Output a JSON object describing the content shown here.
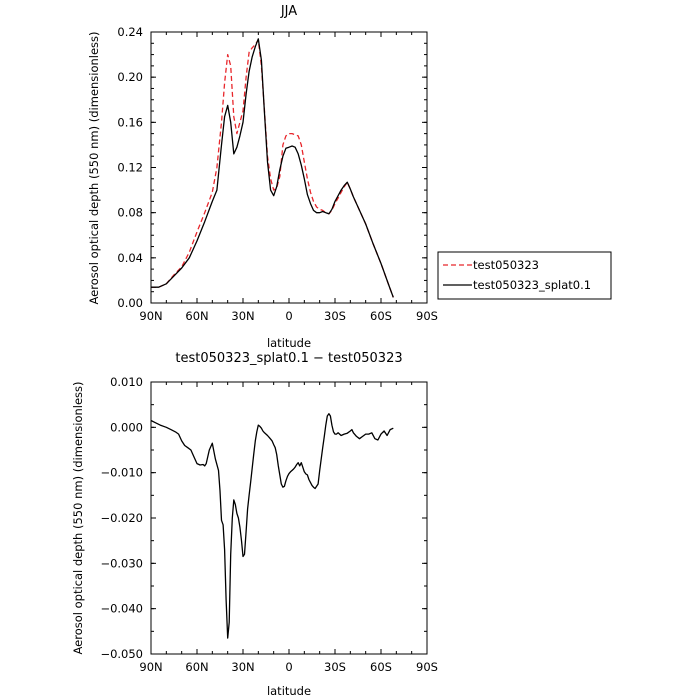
{
  "chart_data": [
    {
      "type": "line",
      "title": "JJA",
      "xlabel": "latitude",
      "ylabel": "Aerosol optical depth (550 nm) (dimensionless)",
      "xlim": [
        90,
        -90
      ],
      "ylim": [
        0,
        0.24
      ],
      "x_ticks": [
        "90N",
        "60N",
        "30N",
        "0",
        "30S",
        "60S",
        "90S"
      ],
      "y_ticks": [
        "0.00",
        "0.04",
        "0.08",
        "0.12",
        "0.16",
        "0.20",
        "0.24"
      ],
      "grid": false,
      "legend_position": "right, outside plot",
      "series": [
        {
          "name": "test050323",
          "color": "#e8262b",
          "style": "dashed",
          "x": [
            90,
            85,
            80,
            75,
            70,
            65,
            60,
            55,
            50,
            47,
            44,
            42,
            40,
            38,
            36,
            34,
            32,
            30,
            28,
            26,
            24,
            22,
            20,
            18,
            16,
            14,
            12,
            10,
            8,
            6,
            4,
            2,
            0,
            -2,
            -4,
            -6,
            -8,
            -10,
            -12,
            -14,
            -16,
            -18,
            -20,
            -22,
            -24,
            -26,
            -28,
            -30,
            -32,
            -34,
            -36,
            -38,
            -40,
            -42,
            -45,
            -50,
            -55,
            -60,
            -65,
            -68
          ],
          "y": [
            0.014,
            0.014,
            0.017,
            0.025,
            0.032,
            0.045,
            0.063,
            0.08,
            0.098,
            0.12,
            0.16,
            0.195,
            0.22,
            0.21,
            0.165,
            0.15,
            0.16,
            0.17,
            0.2,
            0.222,
            0.226,
            0.229,
            0.233,
            0.21,
            0.17,
            0.13,
            0.11,
            0.1,
            0.102,
            0.112,
            0.14,
            0.148,
            0.15,
            0.15,
            0.149,
            0.148,
            0.14,
            0.125,
            0.11,
            0.098,
            0.09,
            0.085,
            0.083,
            0.082,
            0.08,
            0.079,
            0.082,
            0.088,
            0.093,
            0.098,
            0.103,
            0.107,
            0.101,
            0.094,
            0.085,
            0.07,
            0.052,
            0.035,
            0.016,
            0.005
          ]
        },
        {
          "name": "test050323_splat0.1",
          "color": "#000000",
          "style": "solid",
          "x": [
            90,
            85,
            80,
            75,
            70,
            65,
            60,
            55,
            50,
            47,
            44,
            42,
            40,
            38,
            36,
            34,
            32,
            30,
            28,
            26,
            24,
            22,
            20,
            18,
            16,
            14,
            12,
            10,
            8,
            6,
            4,
            2,
            0,
            -2,
            -4,
            -6,
            -8,
            -10,
            -12,
            -14,
            -16,
            -18,
            -20,
            -22,
            -24,
            -26,
            -28,
            -30,
            -32,
            -34,
            -36,
            -38,
            -40,
            -42,
            -45,
            -50,
            -55,
            -60,
            -65,
            -68
          ],
          "y": [
            0.014,
            0.014,
            0.017,
            0.024,
            0.031,
            0.04,
            0.055,
            0.072,
            0.09,
            0.1,
            0.14,
            0.165,
            0.175,
            0.16,
            0.132,
            0.138,
            0.148,
            0.16,
            0.185,
            0.205,
            0.218,
            0.227,
            0.234,
            0.215,
            0.168,
            0.125,
            0.1,
            0.095,
            0.103,
            0.118,
            0.13,
            0.137,
            0.138,
            0.139,
            0.138,
            0.132,
            0.122,
            0.11,
            0.096,
            0.088,
            0.082,
            0.08,
            0.08,
            0.081,
            0.08,
            0.079,
            0.083,
            0.09,
            0.095,
            0.1,
            0.104,
            0.107,
            0.101,
            0.094,
            0.085,
            0.07,
            0.052,
            0.035,
            0.016,
            0.005
          ]
        }
      ]
    },
    {
      "type": "line",
      "title": "test050323_splat0.1 − test050323",
      "xlabel": "latitude",
      "ylabel": "Aerosol optical depth (550 nm) (dimensionless)",
      "xlim": [
        90,
        -90
      ],
      "ylim": [
        -0.05,
        0.01
      ],
      "x_ticks": [
        "90N",
        "60N",
        "30N",
        "0",
        "30S",
        "60S",
        "90S"
      ],
      "y_ticks": [
        "0.010",
        "0.000",
        "−0.010",
        "−0.020",
        "−0.030",
        "−0.040",
        "−0.050"
      ],
      "grid": false,
      "series": [
        {
          "color": "#000000",
          "style": "solid",
          "x": [
            90,
            87,
            84,
            80,
            77,
            74,
            72,
            70,
            68,
            66,
            64,
            62,
            60,
            58,
            56,
            55,
            54,
            52,
            50,
            48,
            46,
            45,
            44,
            43,
            42,
            41,
            40,
            39,
            38,
            37,
            36,
            35,
            34,
            33,
            32,
            31,
            30,
            29,
            28,
            27,
            26,
            25,
            24,
            23,
            22,
            21,
            20,
            19,
            18,
            17,
            16,
            15,
            14,
            13,
            12,
            11,
            10,
            9,
            8,
            7,
            6,
            5,
            4,
            3,
            2,
            1,
            0,
            -1,
            -2,
            -3,
            -4,
            -5,
            -6,
            -7,
            -8,
            -9,
            -10,
            -11,
            -12,
            -13,
            -14,
            -15,
            -16,
            -17,
            -18,
            -19,
            -20,
            -21,
            -22,
            -23,
            -24,
            -25,
            -26,
            -27,
            -28,
            -29,
            -30,
            -31,
            -32,
            -33,
            -34,
            -36,
            -38,
            -40,
            -41,
            -42,
            -44,
            -46,
            -48,
            -50,
            -52,
            -54,
            -56,
            -58,
            -60,
            -62,
            -64,
            -66,
            -68
          ],
          "y": [
            0.0015,
            0.001,
            0.0005,
            0.0,
            -0.0005,
            -0.001,
            -0.0015,
            -0.003,
            -0.004,
            -0.0045,
            -0.005,
            -0.0065,
            -0.008,
            -0.0083,
            -0.0082,
            -0.0085,
            -0.008,
            -0.005,
            -0.0035,
            -0.007,
            -0.0095,
            -0.014,
            -0.0205,
            -0.0215,
            -0.027,
            -0.038,
            -0.0465,
            -0.043,
            -0.028,
            -0.02,
            -0.016,
            -0.017,
            -0.019,
            -0.02,
            -0.022,
            -0.025,
            -0.0285,
            -0.028,
            -0.023,
            -0.018,
            -0.015,
            -0.012,
            -0.009,
            -0.006,
            -0.003,
            -0.001,
            0.0005,
            0.0002,
            -0.0002,
            -0.0008,
            -0.0012,
            -0.0015,
            -0.0018,
            -0.0022,
            -0.0026,
            -0.003,
            -0.0038,
            -0.0045,
            -0.006,
            -0.0085,
            -0.0105,
            -0.0125,
            -0.0132,
            -0.013,
            -0.0118,
            -0.0108,
            -0.0102,
            -0.0098,
            -0.0095,
            -0.0092,
            -0.0088,
            -0.0082,
            -0.0078,
            -0.0085,
            -0.0078,
            -0.0088,
            -0.0098,
            -0.0103,
            -0.0105,
            -0.0115,
            -0.0122,
            -0.0128,
            -0.0132,
            -0.0135,
            -0.013,
            -0.0125,
            -0.0095,
            -0.007,
            -0.0045,
            -0.002,
            0.0005,
            0.0025,
            0.003,
            0.0025,
            0.0005,
            -0.001,
            -0.0015,
            -0.0015,
            -0.0012,
            -0.0015,
            -0.0018,
            -0.0015,
            -0.0013,
            -0.0008,
            -0.0005,
            -0.0012,
            -0.002,
            -0.0025,
            -0.002,
            -0.0015,
            -0.0015,
            -0.0012,
            -0.0025,
            -0.0028,
            -0.0015,
            -0.0008,
            -0.0018,
            -0.0005,
            -0.0002
          ]
        }
      ]
    }
  ]
}
